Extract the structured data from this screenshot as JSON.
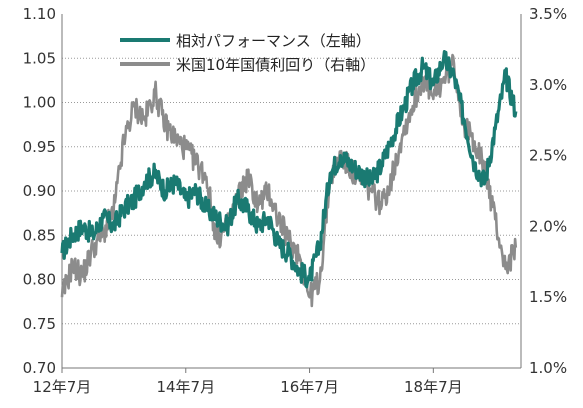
{
  "chart_data": {
    "type": "line",
    "title": "",
    "xlabel": "",
    "ylabel_left": "",
    "ylabel_right": "",
    "x_tick_labels": [
      "12年7月",
      "14年7月",
      "16年7月",
      "18年7月"
    ],
    "x_ticks": [
      "2012-07",
      "2014-07",
      "2016-07",
      "2018-07"
    ],
    "x_range": [
      "2012-07",
      "2019-12"
    ],
    "y_left": {
      "lim": [
        0.7,
        1.1
      ],
      "ticks": [
        "0.70",
        "0.75",
        "0.80",
        "0.85",
        "0.90",
        "0.95",
        "1.00",
        "1.05",
        "1.10"
      ]
    },
    "y_right": {
      "lim": [
        1.0,
        3.5
      ],
      "ticks": [
        "1.0%",
        "1.5%",
        "2.0%",
        "2.5%",
        "3.0%",
        "3.5%"
      ]
    },
    "grid": "horizontal dotted",
    "legend_position": "top-left",
    "series": [
      {
        "name": "相対パフォーマンス（左軸）",
        "axis": "left",
        "color": "#1a7a72",
        "x": [
          "2012-07",
          "2012-09",
          "2012-11",
          "2013-01",
          "2013-03",
          "2013-05",
          "2013-07",
          "2013-09",
          "2013-11",
          "2014-01",
          "2014-03",
          "2014-05",
          "2014-07",
          "2014-09",
          "2014-11",
          "2015-01",
          "2015-03",
          "2015-05",
          "2015-07",
          "2015-09",
          "2015-11",
          "2016-01",
          "2016-03",
          "2016-05",
          "2016-07",
          "2016-09",
          "2016-11",
          "2017-01",
          "2017-03",
          "2017-05",
          "2017-07",
          "2017-09",
          "2017-11",
          "2018-01",
          "2018-03",
          "2018-05",
          "2018-07",
          "2018-09",
          "2018-11",
          "2019-01",
          "2019-03",
          "2019-05",
          "2019-07",
          "2019-09",
          "2019-11"
        ],
        "values": [
          0.83,
          0.85,
          0.86,
          0.85,
          0.87,
          0.86,
          0.88,
          0.89,
          0.91,
          0.92,
          0.9,
          0.91,
          0.89,
          0.9,
          0.88,
          0.87,
          0.86,
          0.89,
          0.88,
          0.86,
          0.87,
          0.84,
          0.83,
          0.81,
          0.8,
          0.84,
          0.92,
          0.94,
          0.93,
          0.92,
          0.91,
          0.93,
          0.96,
          0.99,
          1.02,
          1.04,
          1.02,
          1.05,
          1.03,
          0.98,
          0.93,
          0.91,
          0.97,
          1.03,
          0.99
        ]
      },
      {
        "name": "米国10年国債利回り（右軸）",
        "axis": "right",
        "color": "#8c8c8c",
        "x": [
          "2012-07",
          "2012-09",
          "2012-11",
          "2013-01",
          "2013-03",
          "2013-05",
          "2013-07",
          "2013-09",
          "2013-11",
          "2014-01",
          "2014-03",
          "2014-05",
          "2014-07",
          "2014-09",
          "2014-11",
          "2015-01",
          "2015-03",
          "2015-05",
          "2015-07",
          "2015-09",
          "2015-11",
          "2016-01",
          "2016-03",
          "2016-05",
          "2016-07",
          "2016-09",
          "2016-11",
          "2017-01",
          "2017-03",
          "2017-05",
          "2017-07",
          "2017-09",
          "2017-11",
          "2018-01",
          "2018-03",
          "2018-05",
          "2018-07",
          "2018-09",
          "2018-11",
          "2019-01",
          "2019-03",
          "2019-05",
          "2019-07",
          "2019-09",
          "2019-11"
        ],
        "values": [
          1.5,
          1.72,
          1.65,
          1.85,
          1.95,
          2.1,
          2.6,
          2.85,
          2.75,
          2.95,
          2.72,
          2.62,
          2.55,
          2.45,
          2.35,
          1.9,
          2.0,
          2.2,
          2.35,
          2.15,
          2.25,
          2.05,
          1.9,
          1.8,
          1.5,
          1.62,
          2.35,
          2.5,
          2.4,
          2.3,
          2.25,
          2.15,
          2.35,
          2.65,
          2.85,
          3.05,
          2.9,
          3.05,
          3.15,
          2.7,
          2.6,
          2.4,
          2.05,
          1.7,
          1.85
        ]
      }
    ]
  }
}
